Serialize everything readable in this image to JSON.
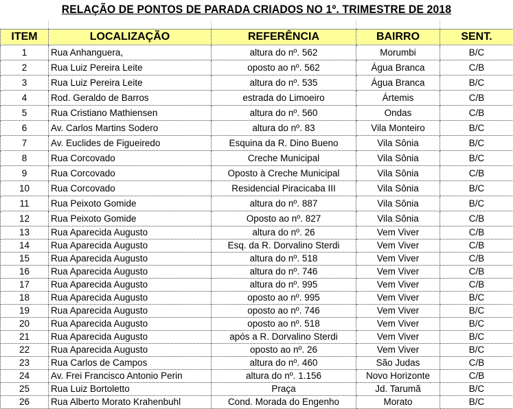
{
  "title": "RELAÇÃO DE PONTOS DE PARADA CRIADOS NO 1º. TRIMESTRE DE 2018",
  "header_color": "#ffff99",
  "columns": [
    "ITEM",
    "LOCALIZAÇÃO",
    "REFERÊNCIA",
    "BAIRRO",
    "SENT."
  ],
  "rows": [
    [
      "1",
      "Rua Anhanguera,",
      "altura do nº. 562",
      "Morumbi",
      "B/C"
    ],
    [
      "2",
      "Rua Luiz Pereira Leite",
      "oposto ao nº. 562",
      "Água Branca",
      "C/B"
    ],
    [
      "3",
      "Rua Luiz Pereira Leite",
      "altura do nº. 535",
      "Água Branca",
      "B/C"
    ],
    [
      "4",
      "Rod. Geraldo de Barros",
      "estrada do Limoeiro",
      "Ártemis",
      "C/B"
    ],
    [
      "5",
      "Rua Cristiano Mathiensen",
      "altura do nº. 560",
      "Ondas",
      "C/B"
    ],
    [
      "6",
      "Av. Carlos Martins Sodero",
      "altura do nº. 83",
      "Vila Monteiro",
      "B/C"
    ],
    [
      "7",
      "Av.  Euclides de Figueiredo",
      "Esquina da R. Dino Bueno",
      "Vila Sônia",
      "B/C"
    ],
    [
      "8",
      "Rua Corcovado",
      "Creche Municipal",
      "Vila Sônia",
      "B/C"
    ],
    [
      "9",
      "Rua Corcovado",
      "Oposto à Creche Municipal",
      "Vila Sônia",
      "C/B"
    ],
    [
      "10",
      "Rua Corcovado",
      "Residencial Piracicaba III",
      "Vila Sônia",
      "B/C"
    ],
    [
      "11",
      "Rua Peixoto Gomide",
      "altura do nº. 887",
      "Vila Sônia",
      "B/C"
    ],
    [
      "12",
      "Rua Peixoto Gomide",
      "Oposto ao nº. 827",
      "Vila Sônia",
      "C/B"
    ],
    [
      "13",
      "Rua Aparecida Augusto",
      "altura do nº. 26",
      "Vem Viver",
      "C/B"
    ],
    [
      "14",
      "Rua Aparecida Augusto",
      "Esq. da R. Dorvalino Sterdi",
      "Vem Viver",
      "C/B"
    ],
    [
      "15",
      "Rua Aparecida Augusto",
      "altura do nº. 518",
      "Vem Viver",
      "C/B"
    ],
    [
      "16",
      "Rua Aparecida Augusto",
      "altura do nº. 746",
      "Vem Viver",
      "C/B"
    ],
    [
      "17",
      "Rua Aparecida Augusto",
      "altura do nº. 995",
      "Vem Viver",
      "C/B"
    ],
    [
      "18",
      "Rua Aparecida Augusto",
      "oposto ao nº. 995",
      "Vem Viver",
      "B/C"
    ],
    [
      "19",
      "Rua Aparecida Augusto",
      "oposto ao nº. 746",
      "Vem Viver",
      "B/C"
    ],
    [
      "20",
      "Rua Aparecida Augusto",
      "oposto ao nº. 518",
      "Vem Viver",
      "B/C"
    ],
    [
      "21",
      "Rua Aparecida Augusto",
      "após a R. Dorvalino Sterdi",
      "Vem Viver",
      "B/C"
    ],
    [
      "22",
      "Rua Aparecida Augusto",
      "oposto ao nº. 26",
      "Vem Viver",
      "B/C"
    ],
    [
      "23",
      "Rua Carlos de Campos",
      "altura do nº. 460",
      "São Judas",
      "C/B"
    ],
    [
      "24",
      "Av. Frei Francisco Antonio Perin",
      "altura do nº. 1.156",
      "Novo Horizonte",
      "C/B"
    ],
    [
      "25",
      "Rua Luiz Bortoletto",
      "Praça",
      "Jd. Tarumã",
      "B/C"
    ],
    [
      "26",
      "Rua Alberto Morato Krahenbuhl",
      "Cond. Morada do Engenho",
      "Morato",
      "B/C"
    ]
  ]
}
